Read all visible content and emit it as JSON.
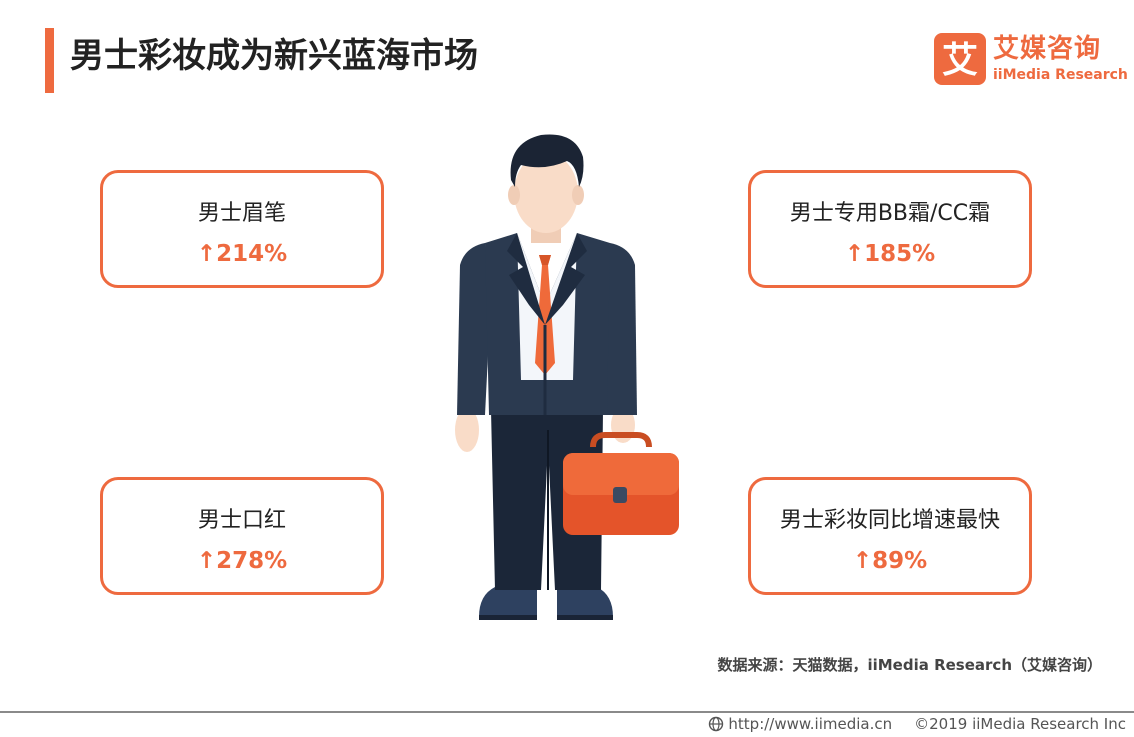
{
  "colors": {
    "accent": "#ee6a3f",
    "title_text": "#222222",
    "suit": "#2b3a50",
    "pants": "#1b2638",
    "hair": "#1b2434",
    "skin": "#f9dcc8",
    "briefcase": "#ef6a3a"
  },
  "header": {
    "title": "男士彩妆成为新兴蓝海市场"
  },
  "logo": {
    "mark_char": "艾",
    "name_cn": "艾媒咨询",
    "name_en": "iiMedia Research"
  },
  "cards": [
    {
      "label": "男士眉笔",
      "arrow": "↑",
      "value": "214%"
    },
    {
      "label": "男士专用BB霜/CC霜",
      "arrow": "↑",
      "value": "185%"
    },
    {
      "label": "男士口红",
      "arrow": "↑",
      "value": "278%"
    },
    {
      "label": "男士彩妆同比增速最快",
      "arrow": "↑",
      "value": "89%"
    }
  ],
  "illustration": {
    "icon": "businessman-with-briefcase-icon"
  },
  "source_note": "数据来源：天猫数据，iiMedia Research（艾媒咨询）",
  "footer": {
    "icon": "globe-icon",
    "url": "http://www.iimedia.cn",
    "copyright": "©2019 iiMedia Research Inc"
  }
}
